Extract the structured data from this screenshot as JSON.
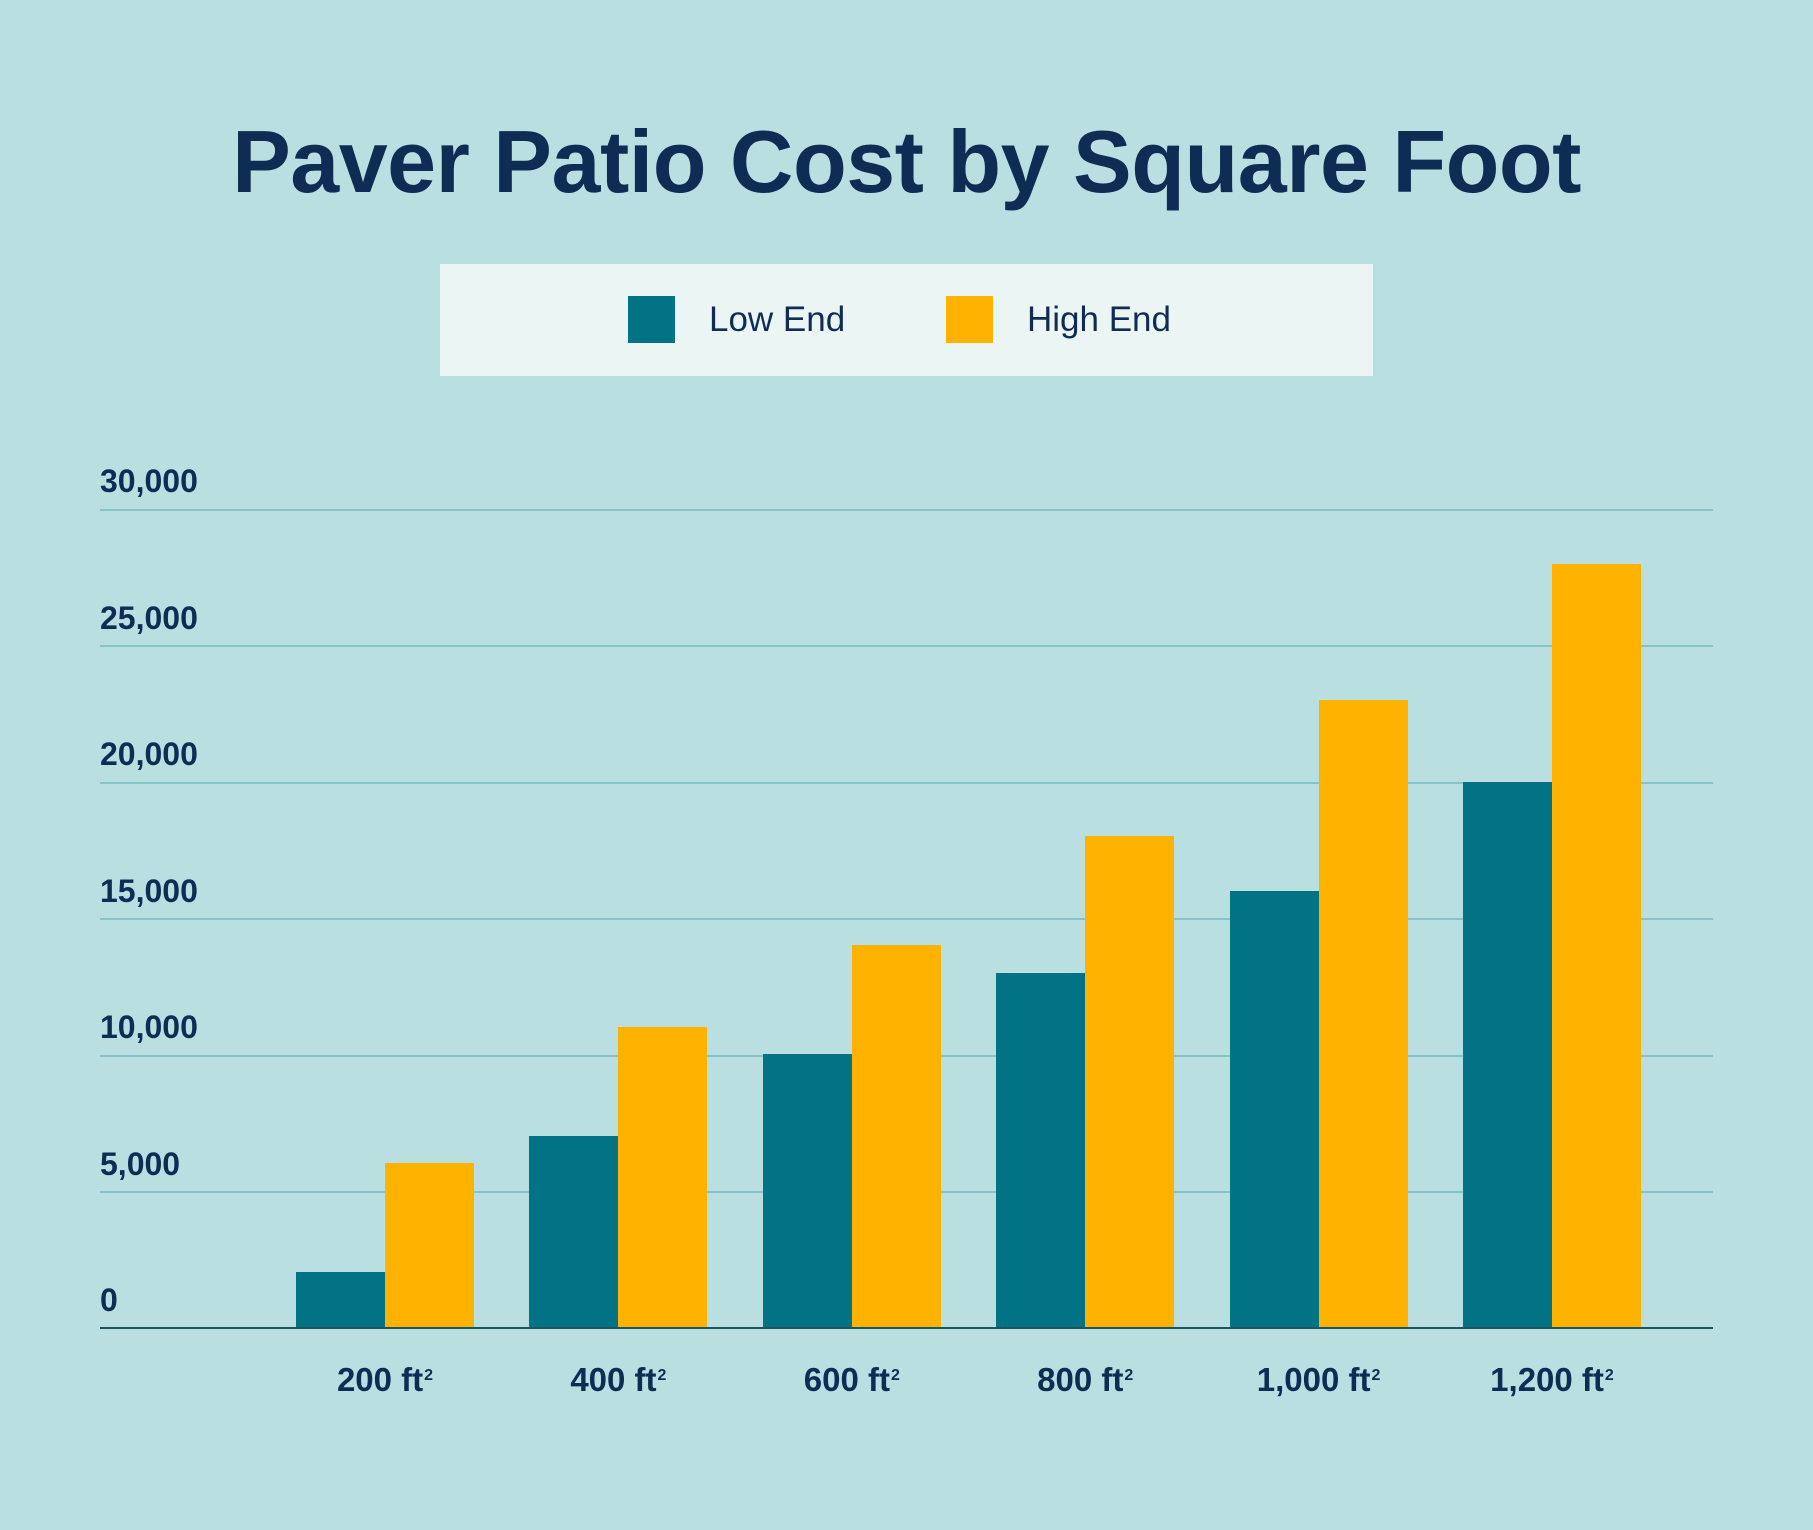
{
  "chart_data": {
    "type": "bar",
    "title": "Paver Patio Cost by Square Foot",
    "xlabel": "",
    "ylabel": "",
    "categories": [
      "200 ft²",
      "400 ft²",
      "600 ft²",
      "800 ft²",
      "1,000 ft²",
      "1,200 ft²"
    ],
    "category_labels": [
      {
        "value": "200 ft",
        "unit_exp": "2"
      },
      {
        "value": "400 ft",
        "unit_exp": "2"
      },
      {
        "value": "600 ft",
        "unit_exp": "2"
      },
      {
        "value": "800 ft",
        "unit_exp": "2"
      },
      {
        "value": "1,000 ft",
        "unit_exp": "2"
      },
      {
        "value": "1,200 ft",
        "unit_exp": "2"
      }
    ],
    "series": [
      {
        "name": "Low End",
        "color": "#017384",
        "values": [
          2000,
          7000,
          10000,
          13000,
          16000,
          20000
        ]
      },
      {
        "name": "High End",
        "color": "#FFB300",
        "values": [
          6000,
          11000,
          14000,
          18000,
          23000,
          28000
        ]
      }
    ],
    "ylim": [
      0,
      30000
    ],
    "yticks": [
      0,
      5000,
      10000,
      15000,
      20000,
      25000,
      30000
    ],
    "ytick_labels": [
      "0",
      "5,000",
      "10,000",
      "15,000",
      "20,000",
      "25,000",
      "30,000"
    ],
    "grid": true,
    "legend_position": "top-center"
  },
  "colors": {
    "background": "#B9DFE0",
    "low_end": "#017384",
    "high_end": "#FFB300",
    "text": "#0F2C55",
    "gridline": "#86C3C8",
    "legend_background": "#EBF5F4"
  }
}
